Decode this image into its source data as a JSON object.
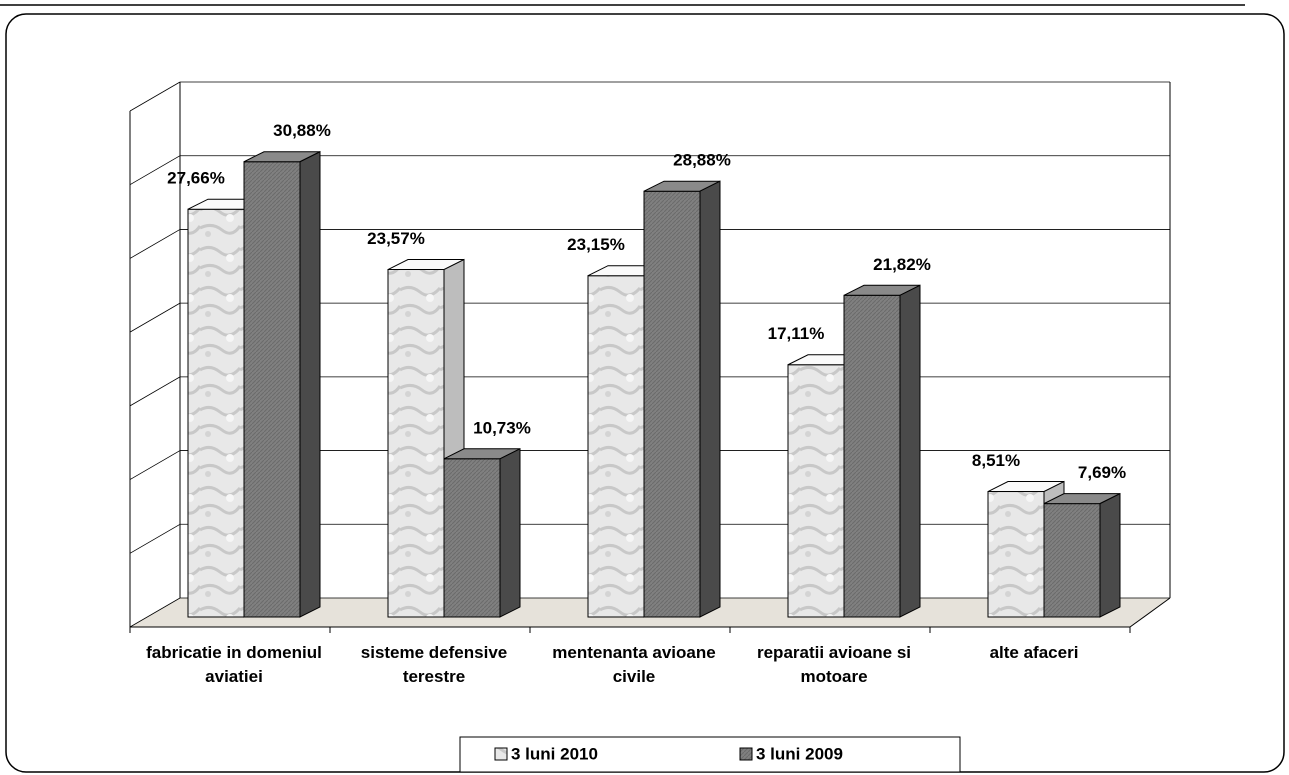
{
  "chart_data": {
    "type": "bar3d",
    "categories": [
      "fabricatie in domeniul aviatiei",
      "sisteme defensive terestre",
      "mentenanta avioane civile",
      "reparatii avioane si motoare",
      "alte afaceri"
    ],
    "series": [
      {
        "name": "3 luni 2010",
        "color": "#e4e4e4",
        "values": [
          27.66,
          23.57,
          23.15,
          17.11,
          8.51
        ],
        "value_labels": [
          "27,66%",
          "23,57%",
          "23,15%",
          "17,11%",
          "8,51%"
        ]
      },
      {
        "name": "3 luni 2009",
        "color": "#7a7a7a",
        "values": [
          30.88,
          10.73,
          28.88,
          21.82,
          7.69
        ],
        "value_labels": [
          "30,88%",
          "10,73%",
          "28,88%",
          "21,82%",
          "7,69%"
        ]
      }
    ],
    "ylim": [
      0,
      35
    ],
    "yticks": [
      0,
      5,
      10,
      15,
      20,
      25,
      30,
      35
    ],
    "grid": true
  }
}
